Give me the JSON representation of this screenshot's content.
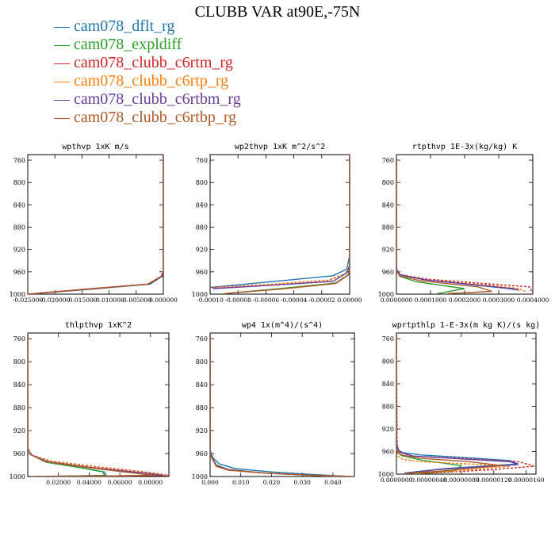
{
  "title": "CLUBB VAR at90E,-75N",
  "series": [
    {
      "name": "cam078_dflt_rg",
      "color": "#1f77b4"
    },
    {
      "name": "cam078_expldiff",
      "color": "#2ca02c"
    },
    {
      "name": "cam078_clubb_c6rtm_rg",
      "color": "#d62728"
    },
    {
      "name": "cam078_clubb_c6rtp_rg",
      "color": "#ff7f0e"
    },
    {
      "name": "cam078_clubb_c6rtbm_rg",
      "color": "#6a3d9a"
    },
    {
      "name": "cam078_clubb_c6rtbp_rg",
      "color": "#b15928"
    }
  ],
  "chart_data": [
    {
      "type": "line",
      "title": "wpthvp   1xK m/s",
      "xlim": [
        -0.025,
        0.0
      ],
      "ylim": [
        1000,
        750
      ],
      "xticks": [
        "-0.025000",
        "-0.020000",
        "-0.015000",
        "-0.010000",
        "-0.005000",
        "0.000000"
      ],
      "xtick_values": [
        -0.025,
        -0.02,
        -0.015,
        -0.01,
        -0.005,
        0.0
      ],
      "yticks": [
        760,
        800,
        840,
        880,
        920,
        960,
        1000
      ],
      "series": [
        {
          "x": [
            0,
            0,
            -0.0002,
            -0.0025,
            -0.012,
            -0.025
          ],
          "y": [
            750,
            958,
            968,
            982,
            990,
            1000
          ]
        },
        {
          "x": [
            0,
            0,
            -0.0003,
            -0.0024,
            -0.0125,
            -0.025
          ],
          "y": [
            750,
            958,
            968,
            982,
            990,
            1000
          ]
        },
        {
          "x": [
            0,
            0,
            -0.0004,
            -0.0028,
            -0.013,
            -0.025
          ],
          "y": [
            750,
            958,
            968,
            982,
            990,
            1000
          ]
        },
        {
          "x": [
            0,
            0,
            -0.0003,
            -0.0027,
            -0.0127,
            -0.025
          ],
          "y": [
            750,
            958,
            968,
            982,
            990,
            1000
          ]
        },
        {
          "x": [
            0,
            0,
            -0.0002,
            -0.0026,
            -0.0126,
            -0.025
          ],
          "y": [
            750,
            958,
            968,
            982,
            990,
            1000
          ]
        },
        {
          "x": [
            0,
            0,
            -0.0004,
            -0.0029,
            -0.0132,
            -0.025
          ],
          "y": [
            750,
            958,
            968,
            982,
            990,
            1000
          ]
        }
      ]
    },
    {
      "type": "line",
      "title": "wp2thvp   1xK m^2/s^2",
      "xlim": [
        -0.0001,
        0.0
      ],
      "ylim": [
        1000,
        750
      ],
      "xticks": [
        "-0.00010",
        "-0.00008",
        "-0.00006",
        "-0.00004",
        "-0.00002",
        "0.00000"
      ],
      "xtick_values": [
        -0.0001,
        -8e-05,
        -6e-05,
        -4e-05,
        -2e-05,
        0.0
      ],
      "yticks": [
        760,
        800,
        840,
        880,
        920,
        960,
        1000
      ],
      "series": [
        {
          "x": [
            0,
            0,
            -2e-06,
            -1.2e-05,
            -4.5e-05,
            -0.0001
          ],
          "y": [
            750,
            930,
            955,
            967,
            975,
            988
          ]
        },
        {
          "x": [
            0,
            0,
            -1e-06,
            -1e-05,
            -5e-05,
            -8.5e-05
          ],
          "y": [
            750,
            955,
            965,
            980,
            990,
            998
          ]
        },
        {
          "x": [
            0,
            0,
            -2e-06,
            -1.5e-05,
            -6e-05,
            -0.0001
          ],
          "y": [
            750,
            950,
            962,
            975,
            983,
            988
          ]
        },
        {
          "x": [
            0,
            0,
            -2e-06,
            -1.4e-05,
            -6e-05,
            -9.5e-05
          ],
          "y": [
            750,
            950,
            962,
            975,
            983,
            988
          ]
        },
        {
          "x": [
            0,
            0,
            -2e-06,
            -1.2e-05,
            -5.5e-05,
            -9.8e-05
          ],
          "y": [
            750,
            948,
            962,
            977,
            984,
            990
          ]
        },
        {
          "x": [
            0,
            0,
            -1e-06,
            -1e-05,
            -5e-05,
            -9e-05
          ],
          "y": [
            750,
            955,
            966,
            981,
            991,
            999
          ]
        }
      ]
    },
    {
      "type": "line",
      "title": "rtpthvp   1E-3x(kg/kg) K",
      "xlim": [
        0.0,
        0.0004
      ],
      "ylim": [
        1000,
        750
      ],
      "xticks": [
        "0.0000000",
        "0.0001000",
        "0.0002000",
        "0.0003000",
        "0.0004000"
      ],
      "xtick_values": [
        0.0,
        0.0001,
        0.0002,
        0.0003,
        0.0004
      ],
      "yticks": [
        760,
        800,
        840,
        880,
        920,
        960,
        1000
      ],
      "series": [
        {
          "x": [
            0,
            0,
            1e-05,
            8e-05,
            0.00025,
            0.00033,
            0.00035
          ],
          "y": [
            750,
            955,
            965,
            974,
            985,
            990,
            992
          ]
        },
        {
          "x": [
            0,
            0,
            1e-05,
            6e-05,
            0.0002,
            0.00012
          ],
          "y": [
            750,
            958,
            968,
            978,
            990,
            999
          ]
        },
        {
          "x": [
            0,
            0,
            1e-05,
            9e-05,
            0.0003,
            0.00039,
            0.0004
          ],
          "y": [
            750,
            955,
            965,
            973,
            983,
            987,
            998
          ]
        },
        {
          "x": [
            0,
            0,
            1e-05,
            8e-05,
            0.00027,
            0.00036,
            0.00038
          ],
          "y": [
            750,
            955,
            965,
            974,
            984,
            990,
            996
          ]
        },
        {
          "x": [
            0,
            0,
            1e-05,
            8e-05,
            0.00026,
            0.00034,
            0.00036
          ],
          "y": [
            750,
            955,
            965,
            974,
            985,
            990,
            993
          ]
        },
        {
          "x": [
            0,
            0,
            1e-05,
            7e-05,
            0.00024,
            0.00028,
            0.00015
          ],
          "y": [
            750,
            958,
            967,
            976,
            987,
            995,
            999
          ]
        }
      ]
    },
    {
      "type": "line",
      "title": "thlpthvp   1xK^2",
      "xlim": [
        0.0,
        0.092
      ],
      "ylim": [
        1000,
        750
      ],
      "xticks": [
        "0.02000",
        "0.04000",
        "0.06000",
        "0.08000"
      ],
      "xtick_values": [
        0.02,
        0.04,
        0.06,
        0.08
      ],
      "yticks": [
        760,
        800,
        840,
        880,
        920,
        960,
        1000
      ],
      "series": [
        {
          "x": [
            0,
            0,
            0.002,
            0.012,
            0.035,
            0.05,
            0.051,
            0.03,
            0.005
          ],
          "y": [
            750,
            950,
            962,
            975,
            985,
            992,
            998,
            999,
            1000
          ]
        },
        {
          "x": [
            0,
            0,
            0.002,
            0.012,
            0.035,
            0.049,
            0.05,
            0.03,
            0.005
          ],
          "y": [
            750,
            950,
            962,
            975,
            985,
            992,
            998,
            999,
            1000
          ]
        },
        {
          "x": [
            0,
            0,
            0.002,
            0.015,
            0.045,
            0.07,
            0.085,
            0.092,
            0.05,
            0.005
          ],
          "y": [
            750,
            950,
            962,
            973,
            983,
            990,
            995,
            998,
            999,
            1000
          ]
        },
        {
          "x": [
            0,
            0,
            0.002,
            0.014,
            0.043,
            0.068,
            0.083,
            0.09,
            0.05,
            0.005
          ],
          "y": [
            750,
            950,
            962,
            973,
            983,
            990,
            995,
            998,
            999,
            1000
          ]
        },
        {
          "x": [
            0,
            0,
            0.002,
            0.013,
            0.04,
            0.065,
            0.08,
            0.088,
            0.05,
            0.005
          ],
          "y": [
            750,
            950,
            962,
            974,
            984,
            991,
            995,
            998,
            999,
            1000
          ]
        },
        {
          "x": [
            0,
            0,
            0.002,
            0.012,
            0.038,
            0.06,
            0.075,
            0.085,
            0.05,
            0.005
          ],
          "y": [
            750,
            950,
            962,
            974,
            984,
            991,
            996,
            998,
            999,
            1000
          ]
        }
      ]
    },
    {
      "type": "line",
      "title": "wp4   1x(m^4)/(s^4)",
      "xlim": [
        0.0,
        0.047
      ],
      "ylim": [
        1000,
        750
      ],
      "xticks": [
        "0.000",
        "0.010",
        "0.020",
        "0.030",
        "0.040"
      ],
      "xtick_values": [
        0.0,
        0.01,
        0.02,
        0.03,
        0.04
      ],
      "yticks": [
        760,
        800,
        840,
        880,
        920,
        960,
        1000
      ],
      "series": [
        {
          "x": [
            0,
            0,
            0.001,
            0.003,
            0.008,
            0.02,
            0.035,
            0.046
          ],
          "y": [
            750,
            955,
            968,
            978,
            986,
            992,
            997,
            1000
          ]
        },
        {
          "x": [
            0,
            0,
            0.001,
            0.002,
            0.006,
            0.018,
            0.034,
            0.046
          ],
          "y": [
            750,
            960,
            970,
            980,
            988,
            994,
            998,
            1000
          ]
        },
        {
          "x": [
            0,
            0,
            0.001,
            0.002,
            0.006,
            0.018,
            0.034,
            0.046
          ],
          "y": [
            750,
            962,
            972,
            982,
            989,
            994,
            998,
            1000
          ]
        },
        {
          "x": [
            0,
            0,
            0.001,
            0.002,
            0.006,
            0.018,
            0.034,
            0.046
          ],
          "y": [
            750,
            962,
            972,
            982,
            989,
            994,
            998,
            1000
          ]
        },
        {
          "x": [
            0,
            0,
            0.001,
            0.002,
            0.006,
            0.018,
            0.034,
            0.046
          ],
          "y": [
            750,
            961,
            971,
            981,
            988,
            994,
            998,
            1000
          ]
        },
        {
          "x": [
            0,
            0,
            0.001,
            0.002,
            0.006,
            0.018,
            0.034,
            0.046
          ],
          "y": [
            750,
            962,
            972,
            982,
            989,
            994,
            998,
            1000
          ]
        }
      ]
    },
    {
      "type": "line",
      "title": "wprtpthlp   1-E-3x(m kg K)/(s kg)",
      "xlim": [
        0.0,
        1.72e-06
      ],
      "ylim": [
        1000,
        750
      ],
      "xticks": [
        "0.0000000",
        "0.00000040",
        "0.00000080",
        "0.00000120",
        "0.00000160"
      ],
      "xtick_values": [
        0.0,
        4e-07,
        8e-07,
        1.2e-06,
        1.6e-06
      ],
      "yticks": [
        760,
        800,
        840,
        880,
        920,
        960,
        1000
      ],
      "series": [
        {
          "x": [
            0,
            0,
            1e-08,
            3e-08,
            8e-08,
            3e-07,
            9e-07,
            1.4e-06,
            1.5e-06,
            6e-07,
            1e-07
          ],
          "y": [
            750,
            935,
            950,
            958,
            962,
            966,
            971,
            976,
            982,
            990,
            998
          ]
        },
        {
          "x": [
            0,
            0,
            1e-08,
            6e-08,
            3e-07,
            8e-07,
            7e-07,
            2e-07
          ],
          "y": [
            750,
            950,
            960,
            967,
            975,
            985,
            995,
            1000
          ]
        },
        {
          "x": [
            0,
            0,
            1e-08,
            5e-08,
            2e-07,
            8e-07,
            1.5e-06,
            1.7e-06,
            1.2e-06,
            3e-07
          ],
          "y": [
            750,
            752,
            955,
            962,
            968,
            972,
            978,
            986,
            992,
            999
          ]
        },
        {
          "x": [
            0,
            0,
            1e-08,
            2e-08,
            8e-08,
            3e-07,
            9e-07,
            1.4e-06,
            8e-07,
            1e-07
          ],
          "y": [
            750,
            950,
            960,
            968,
            974,
            978,
            982,
            986,
            994,
            999
          ]
        },
        {
          "x": [
            0,
            0,
            1e-08,
            6e-08,
            2e-07,
            8e-07,
            1.4e-06,
            1.5e-06,
            5e-07,
            1e-07
          ],
          "y": [
            750,
            945,
            955,
            962,
            968,
            973,
            978,
            983,
            992,
            999
          ]
        },
        {
          "x": [
            0,
            0,
            1e-08,
            6e-08,
            3e-07,
            9e-07,
            1.3e-06,
            6e-07,
            1e-07
          ],
          "y": [
            750,
            952,
            960,
            966,
            972,
            978,
            985,
            994,
            999
          ]
        }
      ]
    }
  ]
}
